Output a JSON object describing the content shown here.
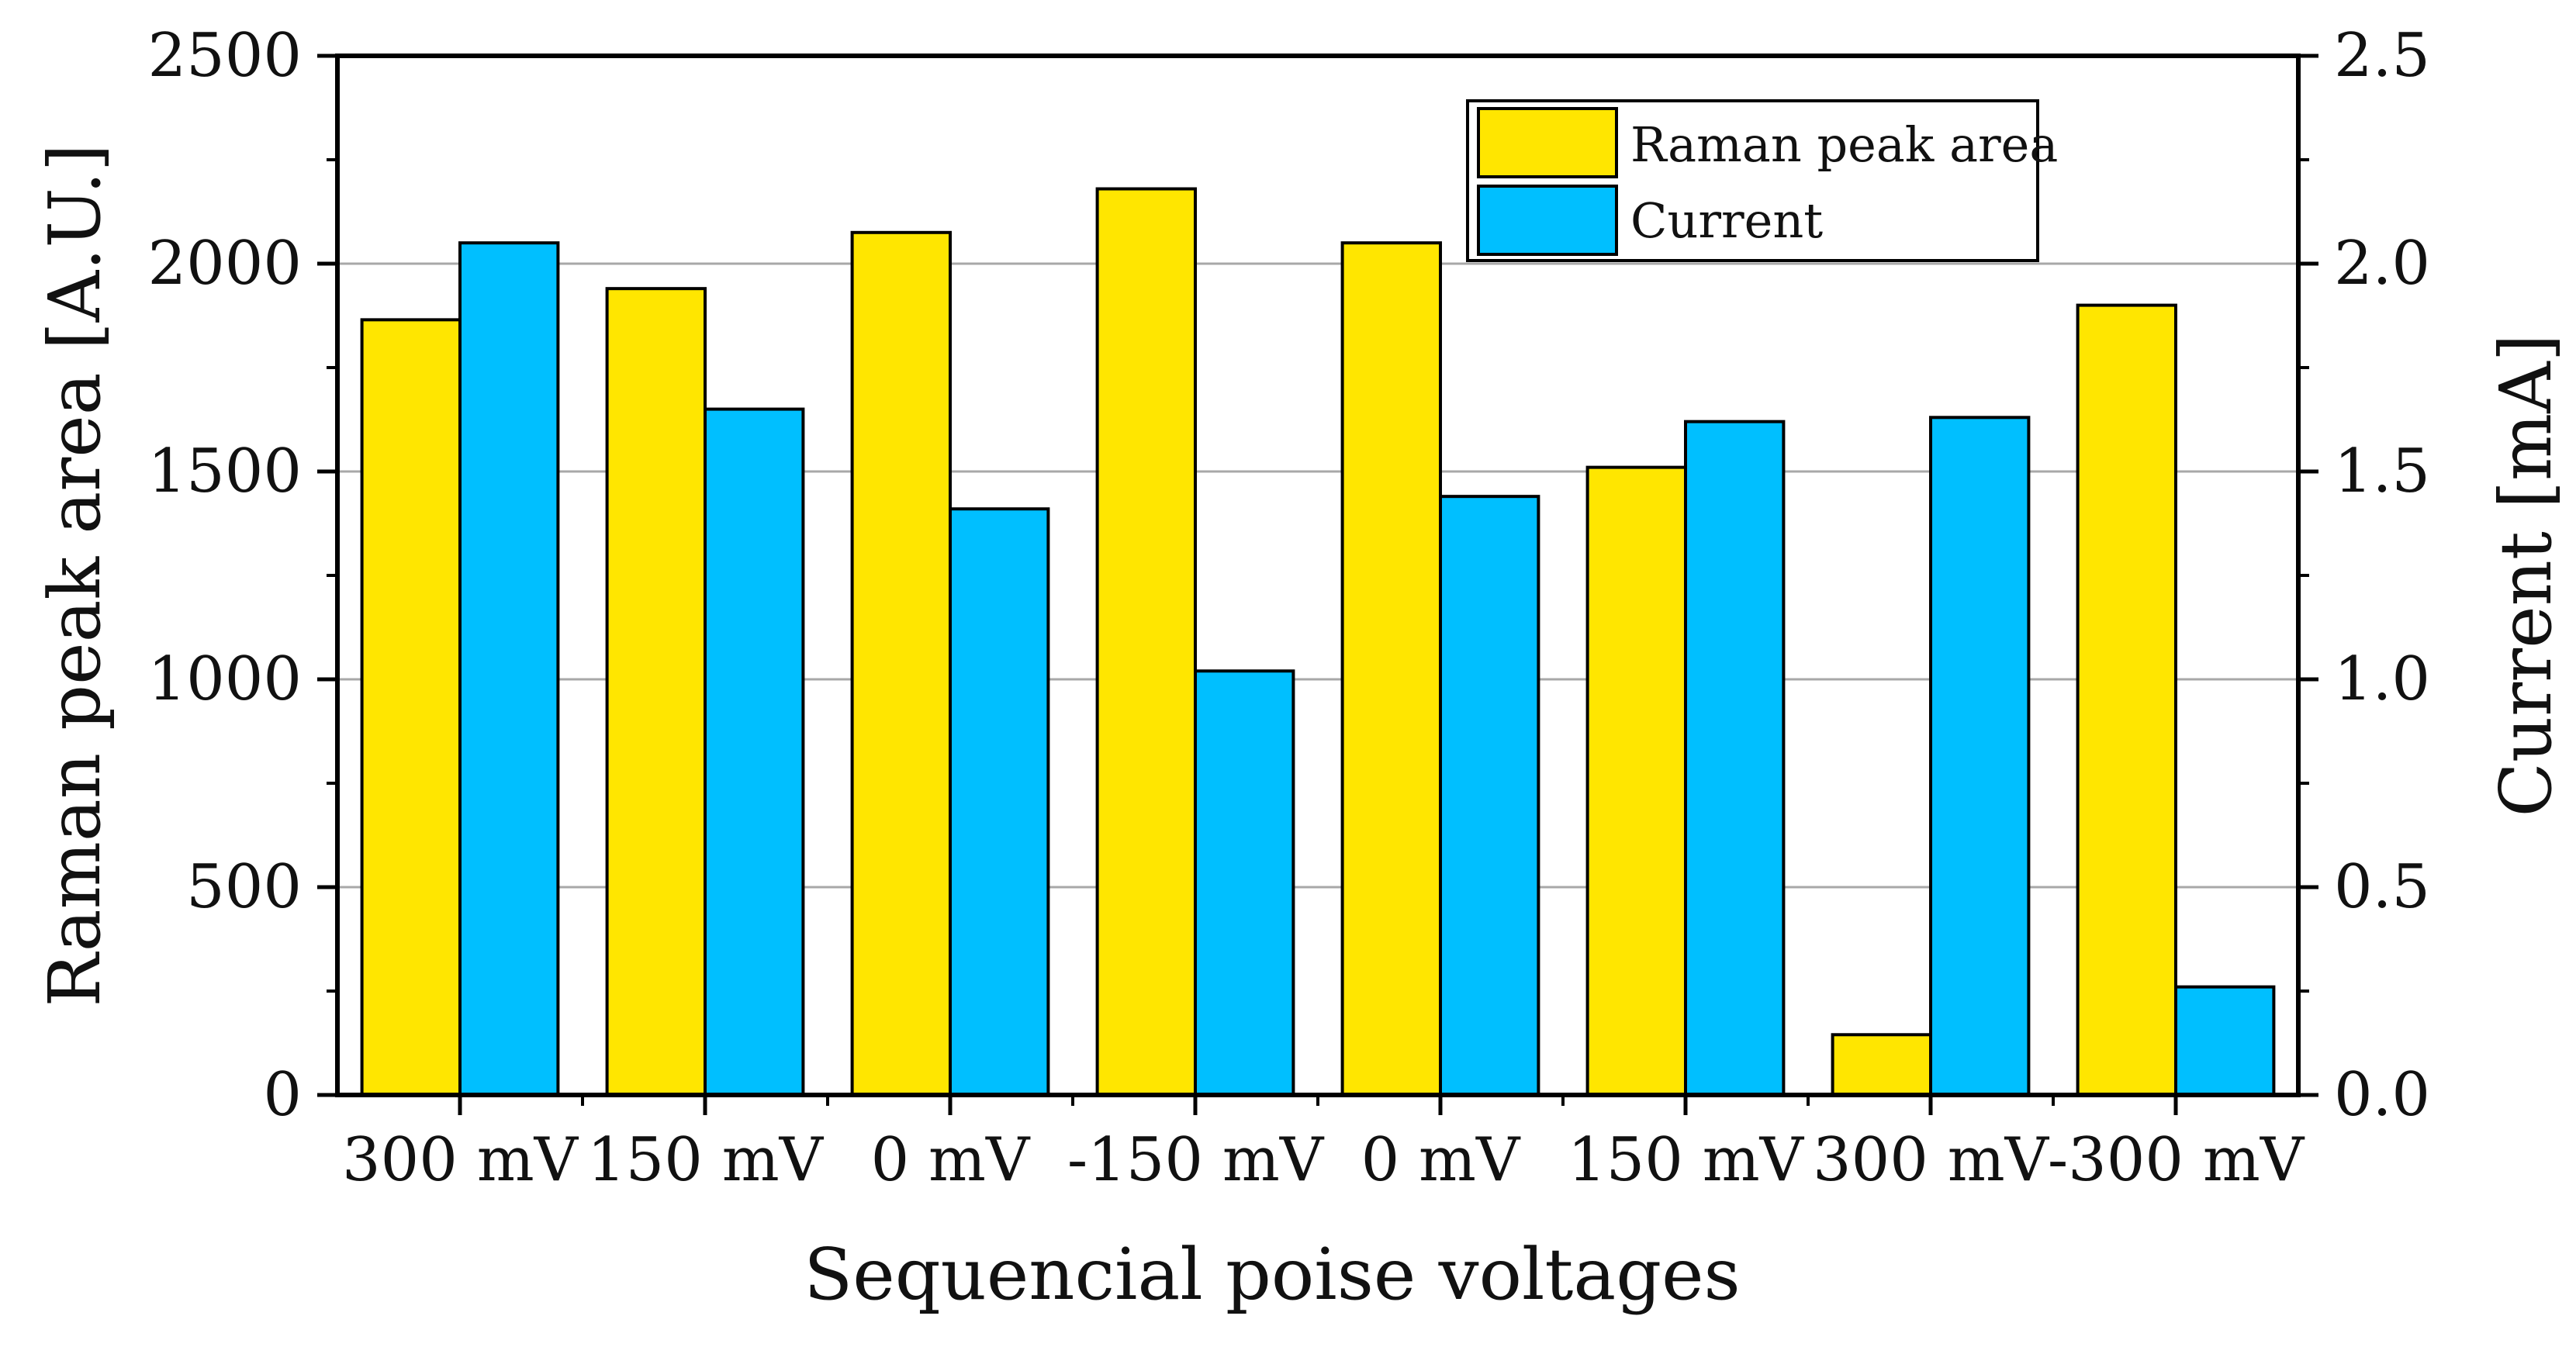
{
  "chart_data": {
    "type": "bar",
    "title": "",
    "xlabel": "Sequencial poise voltages",
    "ylabel": "Raman peak area [A.U.]",
    "y2label": "Current [mA]",
    "categories": [
      "300 mV",
      "150 mV",
      "0 mV",
      "-150 mV",
      "0 mV",
      "150 mV",
      "300 mV",
      "-300 mV"
    ],
    "series": [
      {
        "name": "Raman peak area",
        "axis": "left",
        "color": "#FFE600",
        "values": [
          1865,
          1940,
          2075,
          2180,
          2050,
          1510,
          145,
          1900
        ]
      },
      {
        "name": "Current",
        "axis": "right",
        "color": "#00BFFF",
        "values": [
          2.05,
          1.65,
          1.41,
          1.02,
          1.44,
          1.62,
          1.63,
          0.26
        ]
      }
    ],
    "ylim": [
      0,
      2500
    ],
    "y2lim": [
      0,
      2.5
    ],
    "yticks": [
      "0",
      "500",
      "1000",
      "1500",
      "2000",
      "2500"
    ],
    "y2ticks": [
      "0.0",
      "0.5",
      "1.0",
      "1.5",
      "2.0",
      "2.5"
    ],
    "grid": true,
    "legend_position": "top-right"
  }
}
